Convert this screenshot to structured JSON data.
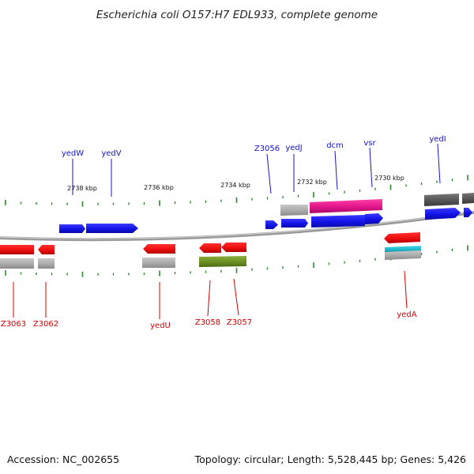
{
  "title": "Escherichia coli O157:H7 EDL933, complete genome",
  "footer": {
    "accession": "Accession: NC_002655",
    "summary": "Topology: circular; Length: 5,528,445 bp; Genes: 5,426"
  },
  "colors": {
    "forward_gene": "#1a1aee",
    "reverse_gene": "#ee1111",
    "top_label": "#1414c8",
    "bottom_label": "#d40000",
    "tick": "#2a8a2a",
    "backbone": "#888888",
    "grey_feature": "#aaaaaa",
    "dark_feature": "#555555",
    "magenta_feature": "#e0158a",
    "olive_feature": "#6b8e23",
    "teal_feature": "#20b8c8"
  },
  "kbp_labels": [
    "2738 kbp",
    "2736 kbp",
    "2734 kbp",
    "2732 kbp",
    "2730 kbp"
  ],
  "gene_labels_top": [
    "yedW",
    "yedV",
    "Z3056",
    "yedJ",
    "dcm",
    "vsr",
    "yedI"
  ],
  "gene_labels_bottom": [
    "Z3063",
    "Z3062",
    "yedU",
    "Z3058",
    "Z3057",
    "yedA"
  ]
}
